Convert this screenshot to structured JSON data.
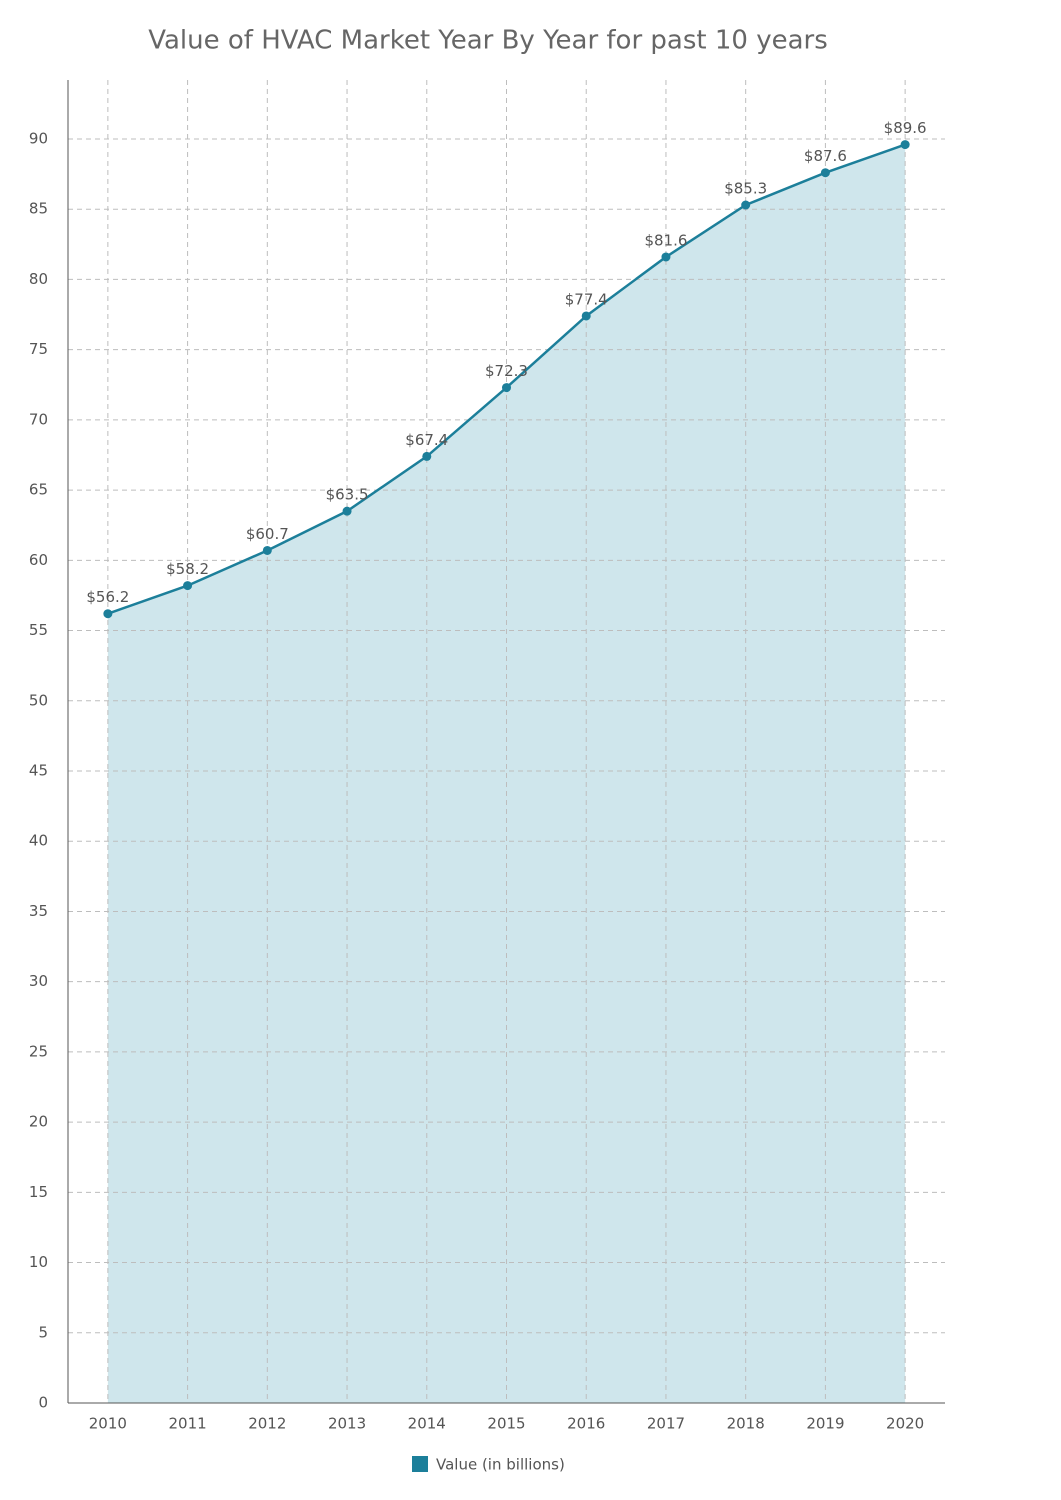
{
  "chart_data": {
    "type": "area",
    "title": "Value of HVAC Market Year By Year for past 10 years",
    "categories": [
      "2010",
      "2011",
      "2012",
      "2013",
      "2014",
      "2015",
      "2016",
      "2017",
      "2018",
      "2019",
      "2020"
    ],
    "series": [
      {
        "name": "Value (in billions)",
        "color": "#1c7f9a",
        "fill": "#cfe6ec",
        "values": [
          56.2,
          58.2,
          60.7,
          63.5,
          67.4,
          72.3,
          77.4,
          81.6,
          85.3,
          87.6,
          89.6
        ],
        "value_labels": [
          "$56.2",
          "$58.2",
          "$60.7",
          "$63.5",
          "$67.4",
          "$72.3",
          "$77.4",
          "$81.6",
          "$85.3",
          "$87.6",
          "$89.6"
        ]
      }
    ],
    "ylim": [
      0,
      94.2
    ],
    "yticks": [
      0,
      5,
      10,
      15,
      20,
      25,
      30,
      35,
      40,
      45,
      50,
      55,
      60,
      65,
      70,
      75,
      80,
      85,
      90
    ],
    "grid": true,
    "legend": "bottom"
  }
}
